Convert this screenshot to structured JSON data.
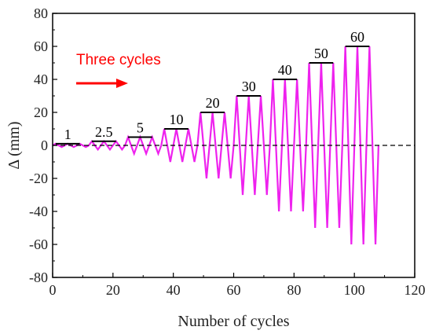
{
  "chart_data": {
    "type": "line",
    "title": "",
    "xlabel": "Number of cycles",
    "ylabel": "Δ (mm)",
    "xlim": [
      0,
      120
    ],
    "ylim": [
      -80,
      80
    ],
    "xticks": [
      "0",
      "20",
      "40",
      "60",
      "80",
      "100",
      "120"
    ],
    "yticks": [
      "80",
      "60",
      "40",
      "20",
      "0",
      "-20",
      "-40",
      "-60",
      "-80"
    ],
    "grid": false,
    "series_color": "#ee22ee",
    "zero_line": {
      "y": 0,
      "style": "dashed"
    },
    "annotation": {
      "text": "Three cycles",
      "color": "#ff0000",
      "arrow": "right"
    },
    "amplitude_levels": [
      {
        "label": "1",
        "amplitude": 1,
        "x_start": 0,
        "x_end": 12
      },
      {
        "label": "2.5",
        "amplitude": 2.5,
        "x_start": 12,
        "x_end": 24
      },
      {
        "label": "5",
        "amplitude": 5,
        "x_start": 24,
        "x_end": 36
      },
      {
        "label": "10",
        "amplitude": 10,
        "x_start": 36,
        "x_end": 48
      },
      {
        "label": "20",
        "amplitude": 20,
        "x_start": 48,
        "x_end": 60
      },
      {
        "label": "30",
        "amplitude": 30,
        "x_start": 60,
        "x_end": 72
      },
      {
        "label": "40",
        "amplitude": 40,
        "x_start": 72,
        "x_end": 84
      },
      {
        "label": "50",
        "amplitude": 50,
        "x_start": 84,
        "x_end": 96
      },
      {
        "label": "60",
        "amplitude": 60,
        "x_start": 96,
        "x_end": 108
      }
    ]
  }
}
